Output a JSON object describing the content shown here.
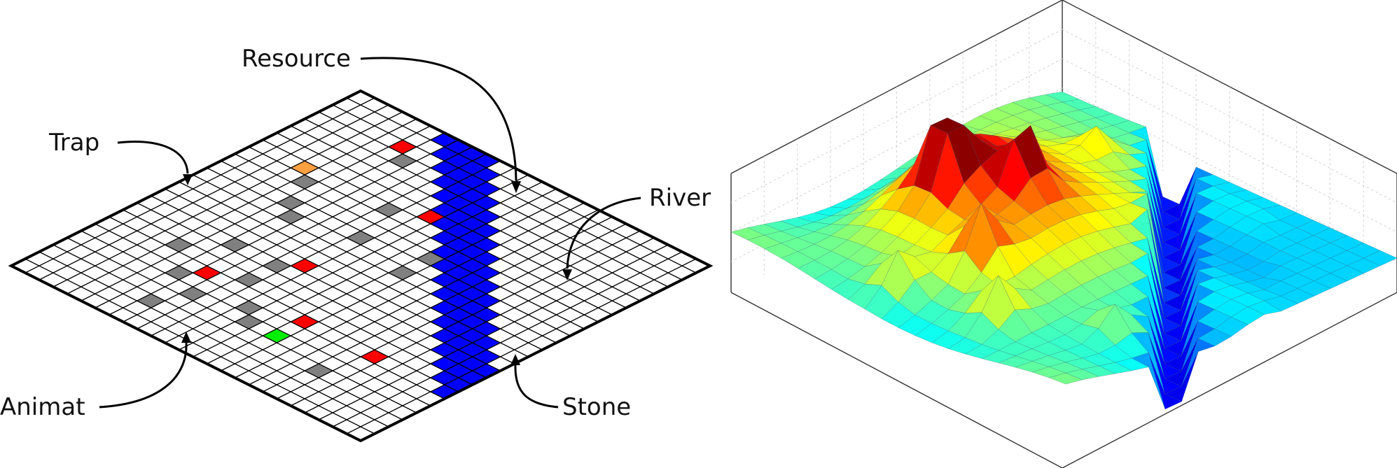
{
  "grid": {
    "size": 25
  },
  "cell_colors": {
    "river": "#0000ff",
    "trap": "#ff0000",
    "resource": "#00ee00",
    "stone": "#808080",
    "animat": "#ffa040",
    "empty": "#ffffff"
  },
  "cells": {
    "traps": [
      [
        6,
        11
      ],
      [
        18,
        14
      ],
      [
        18,
        7
      ],
      [
        14,
        10
      ],
      [
        2,
        5
      ],
      [
        18,
        19
      ]
    ],
    "resources": [
      [
        20,
        14
      ]
    ],
    "stones": [
      [
        7,
        9
      ],
      [
        3,
        6
      ],
      [
        10,
        10
      ],
      [
        9,
        14
      ],
      [
        8,
        4
      ],
      [
        10,
        5
      ],
      [
        11,
        6
      ],
      [
        11,
        14
      ],
      [
        15,
        9
      ],
      [
        17,
        9
      ],
      [
        15,
        6
      ],
      [
        17,
        4
      ],
      [
        19,
        6
      ],
      [
        20,
        8
      ],
      [
        22,
        7
      ],
      [
        19,
        11
      ],
      [
        20,
        12
      ],
      [
        21,
        18
      ]
    ],
    "animat": [
      [
        7,
        3
      ]
    ]
  },
  "labels": {
    "resource": "Resource",
    "trap": "Trap",
    "river": "River",
    "animat": "Animat",
    "stone": "Stone"
  },
  "surface": {
    "colormap": "jet",
    "peak_color": "#ff2000",
    "river_color": "#0030ff"
  }
}
